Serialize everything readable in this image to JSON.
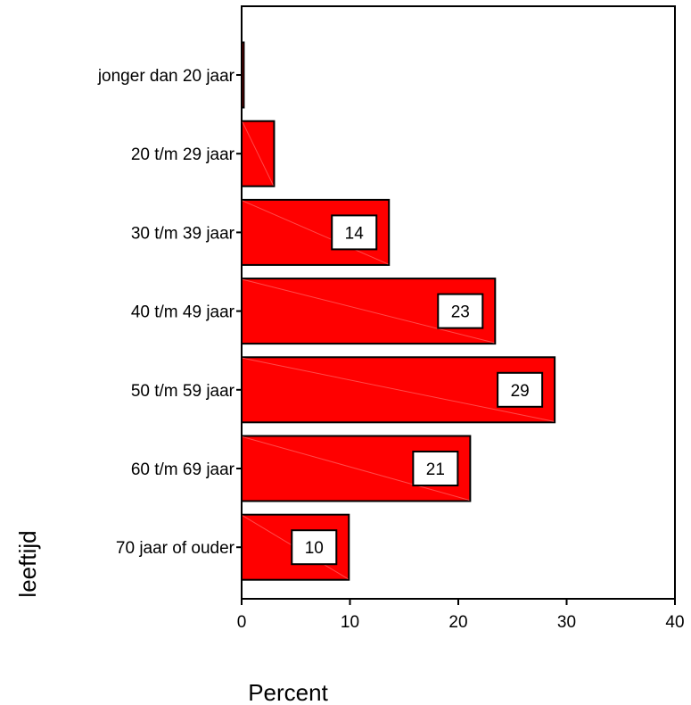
{
  "chart_data": {
    "type": "bar",
    "orientation": "horizontal",
    "categories": [
      "jonger dan 20 jaar",
      "20 t/m 29 jaar",
      "30 t/m 39 jaar",
      "40 t/m 49 jaar",
      "50 t/m 59 jaar",
      "60 t/m 69 jaar",
      "70 jaar of ouder"
    ],
    "values": [
      0.2,
      3,
      13.6,
      23.4,
      28.9,
      21.1,
      9.9
    ],
    "data_labels": [
      "",
      "",
      "14",
      "23",
      "29",
      "21",
      "10"
    ],
    "xlabel": "Percent",
    "ylabel": "leeftijd",
    "xlim": [
      0,
      40
    ],
    "xticks": [
      "0",
      "10",
      "20",
      "30",
      "40"
    ],
    "grid": false,
    "colors": {
      "bar_fill": "#ff0000",
      "bar_stroke": "#000000"
    }
  }
}
